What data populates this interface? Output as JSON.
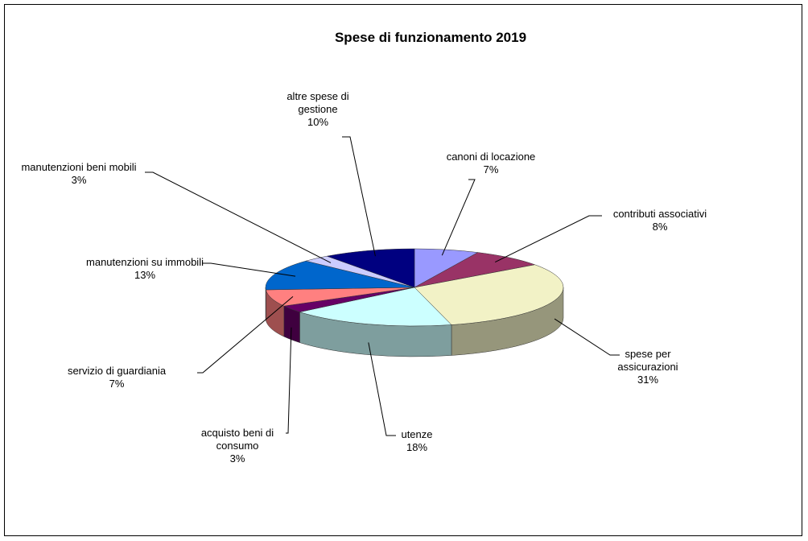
{
  "chart_data": {
    "type": "pie3d",
    "title": "Spese di funzionamento  2019",
    "categories": [
      "canoni di locazione",
      "contributi associativi",
      "spese per assicurazioni",
      "utenze",
      "acquisto beni di consumo",
      "servizio di guardiania",
      "manutenzioni su immobili",
      "manutenzioni beni mobili",
      "altre spese di gestione"
    ],
    "values": [
      7,
      8,
      31,
      18,
      3,
      7,
      13,
      3,
      10
    ],
    "value_labels": [
      "7%",
      "8%",
      "31%",
      "18%",
      "3%",
      "7%",
      "13%",
      "3%",
      "10%"
    ],
    "colors": [
      "#9999ff",
      "#993366",
      "#f2f2c6",
      "#ccffff",
      "#660066",
      "#ff8080",
      "#0066cc",
      "#ccccff",
      "#000080"
    ]
  }
}
